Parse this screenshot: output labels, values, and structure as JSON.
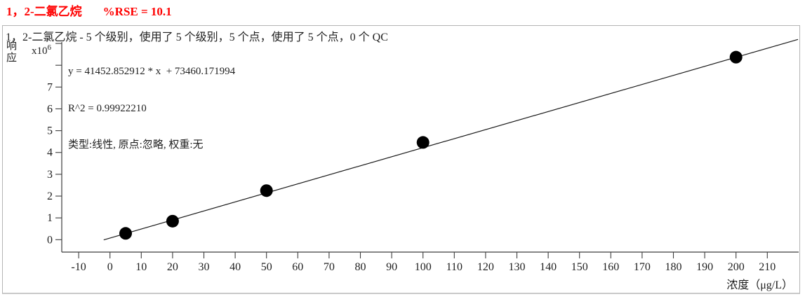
{
  "header": {
    "compound": "1，2-二氯乙烷",
    "rse": "%RSE = 10.1"
  },
  "subtitle": "1，2-二氯乙烷 - 5 个级别，使用了 5 个级别，5 个点，使用了 5 个点，0 个 QC",
  "equation": {
    "formula": "y = 41452.852912 * x  + 73460.171994",
    "r_squared": "R^2 = 0.99922210",
    "settings": "类型:线性, 原点:忽略, 权重:无"
  },
  "axes": {
    "y_label": "响应",
    "y_scale_base": "x10",
    "y_scale_exp": "6",
    "x_label": "浓度（μg/L）"
  },
  "colors": {
    "title_red": "#ff0000",
    "axis": "#3c3c3c",
    "text": "#1f1f1f",
    "fit_line": "#1a1a1a",
    "point": "#000000",
    "border": "#b4b4b4"
  },
  "chart_data": {
    "type": "scatter",
    "title": "1，2-二氯乙烷 - 5 个级别，使用了 5 个级别，5 个点，使用了 5 个点，0 个 QC",
    "xlabel": "浓度（μg/L）",
    "ylabel": "响应",
    "y_scale_label": "x10^6",
    "points": [
      {
        "conc": 5,
        "response": 290000
      },
      {
        "conc": 20,
        "response": 850000
      },
      {
        "conc": 50,
        "response": 2250000
      },
      {
        "conc": 100,
        "response": 4460000
      },
      {
        "conc": 200,
        "response": 8370000
      }
    ],
    "fit": {
      "type_label": "线性",
      "origin_label": "忽略",
      "weight_label": "无",
      "slope": 41452.852912,
      "intercept": 73460.171994,
      "r2": 0.9992221,
      "rse_percent": 10.1,
      "line_span_conc": [
        -2,
        219.8
      ]
    },
    "x_ticks": [
      -10,
      0,
      10,
      20,
      30,
      40,
      50,
      60,
      70,
      80,
      90,
      100,
      110,
      120,
      130,
      140,
      150,
      160,
      170,
      180,
      190,
      200,
      210
    ],
    "y_ticks": [
      0,
      1,
      2,
      3,
      4,
      5,
      6,
      7
    ],
    "y_minor_ticks": [
      8,
      9
    ],
    "xlim": [
      -15.4,
      220.5
    ],
    "ylim": [
      -570000,
      9300000
    ],
    "grid": false,
    "legend": "none"
  }
}
